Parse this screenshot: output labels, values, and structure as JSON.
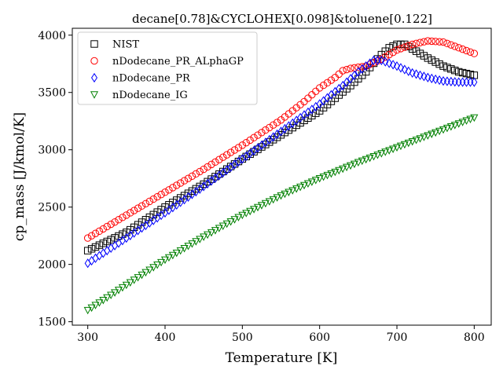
{
  "chart_data": {
    "type": "scatter",
    "title": "decane[0.78]&CYCLOHEX[0.098]&toluene[0.122]",
    "xlabel": "Temperature [K]",
    "ylabel": "cp_mass [J/kmol/K]",
    "xlim": [
      280,
      822
    ],
    "ylim": [
      1470,
      4060
    ],
    "xticks": [
      300,
      400,
      500,
      600,
      700,
      800
    ],
    "yticks": [
      1500,
      2000,
      2500,
      3000,
      3500,
      4000
    ],
    "grid": false,
    "legend_position": "top-left",
    "series": [
      {
        "name": "NIST",
        "marker": "square",
        "color": "#000000",
        "points": [
          [
            300,
            2120
          ],
          [
            350,
            2280
          ],
          [
            400,
            2500
          ],
          [
            450,
            2700
          ],
          [
            500,
            2920
          ],
          [
            550,
            3130
          ],
          [
            600,
            3340
          ],
          [
            620,
            3450
          ],
          [
            640,
            3560
          ],
          [
            660,
            3680
          ],
          [
            680,
            3830
          ],
          [
            690,
            3890
          ],
          [
            700,
            3920
          ],
          [
            710,
            3920
          ],
          [
            720,
            3880
          ],
          [
            740,
            3800
          ],
          [
            760,
            3730
          ],
          [
            780,
            3680
          ],
          [
            800,
            3650
          ]
        ]
      },
      {
        "name": "nDodecane_PR_ALphaGP",
        "marker": "circle",
        "color": "#ff0000",
        "points": [
          [
            300,
            2230
          ],
          [
            350,
            2430
          ],
          [
            400,
            2630
          ],
          [
            450,
            2830
          ],
          [
            500,
            3040
          ],
          [
            550,
            3260
          ],
          [
            580,
            3420
          ],
          [
            600,
            3540
          ],
          [
            620,
            3630
          ],
          [
            630,
            3690
          ],
          [
            640,
            3710
          ],
          [
            660,
            3730
          ],
          [
            680,
            3790
          ],
          [
            700,
            3870
          ],
          [
            720,
            3920
          ],
          [
            740,
            3950
          ],
          [
            760,
            3940
          ],
          [
            780,
            3890
          ],
          [
            800,
            3840
          ]
        ]
      },
      {
        "name": "nDodecane_PR",
        "marker": "diamond",
        "color": "#0000ff",
        "points": [
          [
            300,
            2010
          ],
          [
            350,
            2230
          ],
          [
            400,
            2450
          ],
          [
            450,
            2680
          ],
          [
            500,
            2920
          ],
          [
            550,
            3160
          ],
          [
            600,
            3400
          ],
          [
            630,
            3560
          ],
          [
            650,
            3680
          ],
          [
            670,
            3780
          ],
          [
            680,
            3780
          ],
          [
            700,
            3730
          ],
          [
            720,
            3670
          ],
          [
            740,
            3630
          ],
          [
            760,
            3600
          ],
          [
            780,
            3590
          ],
          [
            800,
            3590
          ]
        ]
      },
      {
        "name": "nDodecane_IG",
        "marker": "triangle-down",
        "color": "#008000",
        "points": [
          [
            300,
            1600
          ],
          [
            350,
            1820
          ],
          [
            400,
            2040
          ],
          [
            450,
            2240
          ],
          [
            500,
            2430
          ],
          [
            550,
            2600
          ],
          [
            600,
            2750
          ],
          [
            650,
            2890
          ],
          [
            700,
            3020
          ],
          [
            750,
            3150
          ],
          [
            800,
            3280
          ]
        ]
      }
    ]
  }
}
